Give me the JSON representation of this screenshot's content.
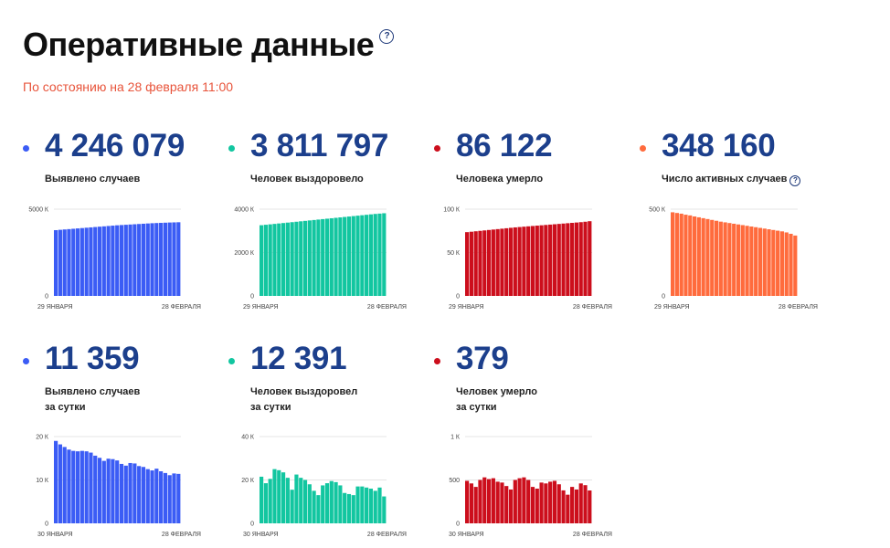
{
  "header": {
    "title": "Оперативные данные",
    "help_icon": "?",
    "subtitle": "По состоянию на 28 февраля 11:00"
  },
  "colors": {
    "blue": "#3b5cf5",
    "green": "#12c6a0",
    "red": "#cc0e1c",
    "orange": "#ff6b3d"
  },
  "cards": [
    {
      "value": "4 246 079",
      "label_line1": "Выявлено случаев",
      "label_line2": "",
      "color": "#3b5cf5",
      "chart_data": {
        "type": "bar",
        "x_start_label": "29 ЯНВАРЯ",
        "x_end_label": "28 ФЕВРАЛЯ",
        "yticks": [
          {
            "value": 5000,
            "label": "5000 К"
          },
          {
            "value": 0,
            "label": "0"
          }
        ],
        "ylim": [
          0,
          5000
        ],
        "values": [
          3790,
          3810,
          3830,
          3850,
          3870,
          3890,
          3910,
          3930,
          3950,
          3970,
          3990,
          4010,
          4030,
          4050,
          4070,
          4085,
          4100,
          4115,
          4130,
          4145,
          4160,
          4175,
          4190,
          4200,
          4210,
          4220,
          4230,
          4238,
          4246
        ]
      }
    },
    {
      "value": "3 811 797",
      "label_line1": "Человек выздоровело",
      "label_line2": "",
      "color": "#12c6a0",
      "chart_data": {
        "type": "bar",
        "x_start_label": "29 ЯНВАРЯ",
        "x_end_label": "28 ФЕВРАЛЯ",
        "yticks": [
          {
            "value": 4000,
            "label": "4000 К"
          },
          {
            "value": 2000,
            "label": "2000 К"
          },
          {
            "value": 0,
            "label": "0"
          }
        ],
        "ylim": [
          0,
          4000
        ],
        "values": [
          3260,
          3280,
          3300,
          3320,
          3340,
          3360,
          3380,
          3400,
          3420,
          3440,
          3460,
          3480,
          3500,
          3520,
          3540,
          3560,
          3580,
          3600,
          3620,
          3640,
          3660,
          3680,
          3700,
          3720,
          3740,
          3760,
          3780,
          3795,
          3812
        ]
      }
    },
    {
      "value": "86 122",
      "label_line1": "Человека умерло",
      "label_line2": "",
      "color": "#cc0e1c",
      "chart_data": {
        "type": "bar",
        "x_start_label": "29 ЯНВАРЯ",
        "x_end_label": "28 ФЕВРАЛЯ",
        "yticks": [
          {
            "value": 100,
            "label": "100 К"
          },
          {
            "value": 50,
            "label": "50 К"
          },
          {
            "value": 0,
            "label": "0"
          }
        ],
        "ylim": [
          0,
          100
        ],
        "values": [
          73.5,
          74,
          74.5,
          75,
          75.5,
          76,
          76.5,
          77,
          77.5,
          78,
          78.5,
          79,
          79.4,
          79.8,
          80.2,
          80.6,
          81,
          81.4,
          81.8,
          82.2,
          82.6,
          83,
          83.4,
          83.8,
          84.2,
          84.6,
          85,
          85.5,
          86.1
        ]
      }
    },
    {
      "value": "348 160",
      "label_line1": "Число активных случаев",
      "label_line2": "",
      "color": "#ff6b3d",
      "has_help": true,
      "chart_data": {
        "type": "bar",
        "x_start_label": "29 ЯНВАРЯ",
        "x_end_label": "28 ФЕВРАЛЯ",
        "yticks": [
          {
            "value": 500,
            "label": "500 К"
          },
          {
            "value": 0,
            "label": "0"
          }
        ],
        "ylim": [
          0,
          500
        ],
        "values": [
          482,
          478,
          474,
          468,
          464,
          458,
          453,
          448,
          443,
          438,
          433,
          428,
          424,
          420,
          416,
          412,
          408,
          404,
          400,
          396,
          392,
          388,
          384,
          380,
          376,
          372,
          366,
          358,
          348
        ]
      }
    },
    {
      "value": "11 359",
      "label_line1": "Выявлено случаев",
      "label_line2": "за сутки",
      "color": "#3b5cf5",
      "chart_data": {
        "type": "bar",
        "x_start_label": "30 ЯНВАРЯ",
        "x_end_label": "28 ФЕВРАЛЯ",
        "yticks": [
          {
            "value": 20,
            "label": "20 К"
          },
          {
            "value": 10,
            "label": "10 К"
          },
          {
            "value": 0,
            "label": "0"
          }
        ],
        "ylim": [
          0,
          20
        ],
        "values": [
          19.0,
          18.2,
          17.6,
          17.0,
          16.7,
          16.6,
          16.7,
          16.6,
          16.3,
          15.6,
          15.1,
          14.4,
          14.9,
          14.8,
          14.5,
          13.7,
          13.3,
          13.9,
          13.8,
          13.2,
          13.0,
          12.5,
          12.2,
          12.6,
          12.0,
          11.6,
          11.1,
          11.5,
          11.4
        ]
      }
    },
    {
      "value": "12 391",
      "label_line1": "Человек выздоровел",
      "label_line2": "за сутки",
      "color": "#12c6a0",
      "chart_data": {
        "type": "bar",
        "x_start_label": "30 ЯНВАРЯ",
        "x_end_label": "28 ФЕВРАЛЯ",
        "yticks": [
          {
            "value": 40,
            "label": "40 К"
          },
          {
            "value": 20,
            "label": "20 К"
          },
          {
            "value": 0,
            "label": "0"
          }
        ],
        "ylim": [
          0,
          40
        ],
        "values": [
          21.5,
          18.5,
          20.5,
          25.0,
          24.5,
          23.5,
          21.0,
          15.5,
          22.5,
          21.0,
          20.0,
          18.0,
          15.0,
          13.0,
          17.5,
          18.5,
          19.5,
          19.0,
          17.5,
          14.0,
          13.5,
          13.0,
          17.0,
          17.0,
          16.5,
          16.0,
          15.0,
          16.5,
          12.4
        ]
      }
    },
    {
      "value": "379",
      "label_line1": "Человек умерло",
      "label_line2": "за сутки",
      "color": "#cc0e1c",
      "chart_data": {
        "type": "bar",
        "x_start_label": "30 ЯНВАРЯ",
        "x_end_label": "28 ФЕВРАЛЯ",
        "yticks": [
          {
            "value": 1000,
            "label": "1 К"
          },
          {
            "value": 500,
            "label": "500"
          },
          {
            "value": 0,
            "label": "0"
          }
        ],
        "ylim": [
          0,
          1000
        ],
        "values": [
          490,
          460,
          420,
          500,
          530,
          510,
          520,
          480,
          470,
          430,
          390,
          500,
          520,
          530,
          500,
          420,
          400,
          470,
          460,
          480,
          490,
          450,
          380,
          330,
          420,
          390,
          460,
          440,
          379
        ]
      }
    }
  ]
}
